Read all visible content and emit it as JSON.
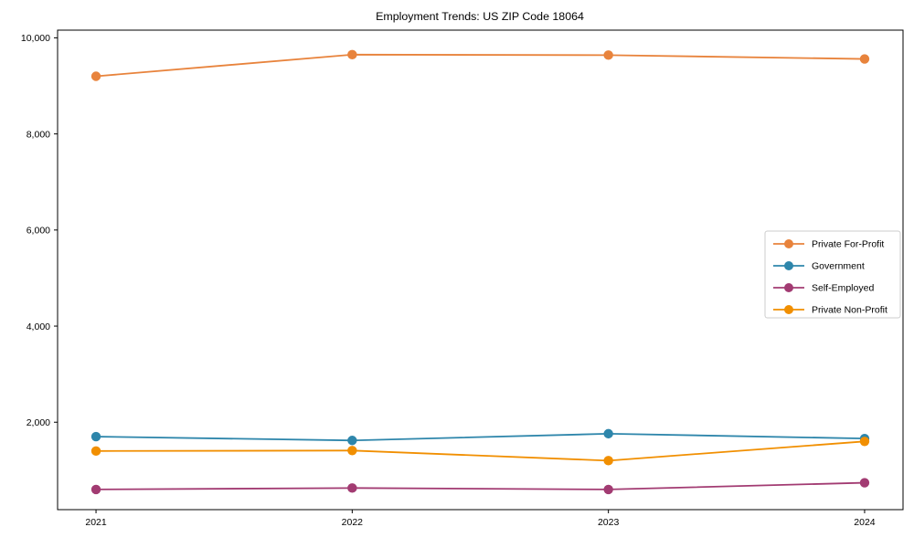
{
  "chart_data": {
    "type": "line",
    "title": "Employment Trends: US ZIP Code 18064",
    "x": [
      2021,
      2022,
      2023,
      2024
    ],
    "x_tick_labels": [
      "2021",
      "2022",
      "2023",
      "2024"
    ],
    "yticks": [
      2000,
      4000,
      6000,
      8000,
      10000
    ],
    "ytick_labels": [
      "2,000",
      "4,000",
      "6,000",
      "8,000",
      "10,000"
    ],
    "xlim": [
      2020.85,
      2024.15
    ],
    "ylim": [
      180,
      10160
    ],
    "grid": false,
    "legend_position": "center right",
    "background_color": "#ffffff",
    "axis_color": "#000000",
    "legend_border_color": "#cccccc",
    "series": [
      {
        "name": "Private For-Profit",
        "color": "#E8833C",
        "values": [
          9200,
          9650,
          9640,
          9560
        ]
      },
      {
        "name": "Government",
        "color": "#2E86AB",
        "values": [
          1700,
          1620,
          1760,
          1660
        ]
      },
      {
        "name": "Self-Employed",
        "color": "#A23B72",
        "values": [
          600,
          630,
          600,
          740
        ]
      },
      {
        "name": "Private Non-Profit",
        "color": "#F18F01",
        "values": [
          1400,
          1410,
          1200,
          1600
        ]
      }
    ]
  }
}
